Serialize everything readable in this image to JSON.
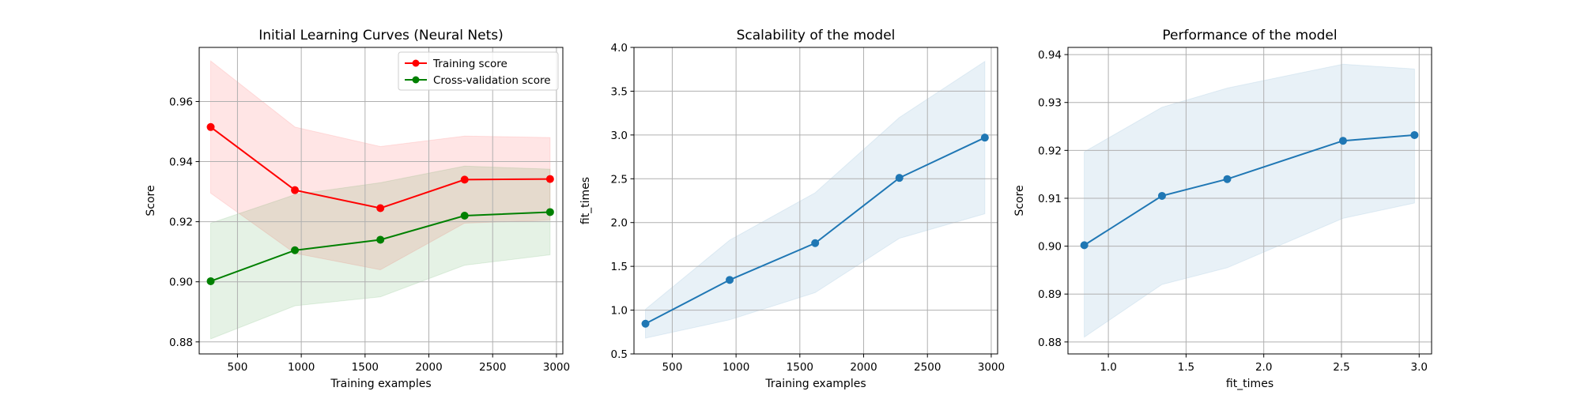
{
  "chart_data": [
    {
      "type": "line",
      "title": "Initial Learning Curves (Neural Nets)",
      "xlabel": "Training examples",
      "ylabel": "Score",
      "xlim": [
        200,
        3050
      ],
      "ylim": [
        0.876,
        0.978
      ],
      "xticks": [
        500,
        1000,
        1500,
        2000,
        2500,
        3000
      ],
      "xtick_labels": [
        "500",
        "1000",
        "1500",
        "2000",
        "2500",
        "3000"
      ],
      "yticks": [
        0.88,
        0.9,
        0.92,
        0.94,
        0.96
      ],
      "ytick_labels": [
        "0.88",
        "0.90",
        "0.92",
        "0.94",
        "0.96"
      ],
      "grid": true,
      "legend": "upper right",
      "x": [
        290,
        950,
        1620,
        2280,
        2950
      ],
      "series": [
        {
          "name": "Training score",
          "color": "#ff0000",
          "band_color": "#ff0000",
          "values": [
            0.9515,
            0.9305,
            0.9245,
            0.934,
            0.9342
          ],
          "lower": [
            0.9295,
            0.9095,
            0.904,
            0.9195,
            0.9205
          ],
          "upper": [
            0.9735,
            0.9515,
            0.945,
            0.9485,
            0.948
          ]
        },
        {
          "name": "Cross-validation score",
          "color": "#008000",
          "band_color": "#008000",
          "values": [
            0.9002,
            0.9105,
            0.914,
            0.922,
            0.9232
          ],
          "lower": [
            0.881,
            0.892,
            0.895,
            0.9055,
            0.909
          ],
          "upper": [
            0.9195,
            0.929,
            0.933,
            0.9385,
            0.9375
          ]
        }
      ]
    },
    {
      "type": "line",
      "title": "Scalability of the model",
      "xlabel": "Training examples",
      "ylabel": "fit_times",
      "xlim": [
        200,
        3050
      ],
      "ylim": [
        0.5,
        4.0
      ],
      "xticks": [
        500,
        1000,
        1500,
        2000,
        2500,
        3000
      ],
      "xtick_labels": [
        "500",
        "1000",
        "1500",
        "2000",
        "2500",
        "3000"
      ],
      "yticks": [
        0.5,
        1.0,
        1.5,
        2.0,
        2.5,
        3.0,
        3.5,
        4.0
      ],
      "ytick_labels": [
        "0.5",
        "1.0",
        "1.5",
        "2.0",
        "2.5",
        "3.0",
        "3.5",
        "4.0"
      ],
      "grid": true,
      "x": [
        290,
        950,
        1620,
        2280,
        2950
      ],
      "series": [
        {
          "color": "#1f77b4",
          "band_color": "#1f77b4",
          "values": [
            0.845,
            1.345,
            1.765,
            2.51,
            2.97
          ],
          "lower": [
            0.68,
            0.89,
            1.2,
            1.82,
            2.1
          ],
          "upper": [
            1.01,
            1.8,
            2.34,
            3.2,
            3.84
          ]
        }
      ]
    },
    {
      "type": "line",
      "title": "Performance of the model",
      "xlabel": "fit_times",
      "ylabel": "Score",
      "xlim": [
        0.74,
        3.08
      ],
      "ylim": [
        0.8775,
        0.9415
      ],
      "xticks": [
        1.0,
        1.5,
        2.0,
        2.5,
        3.0
      ],
      "xtick_labels": [
        "1.0",
        "1.5",
        "2.0",
        "2.5",
        "3.0"
      ],
      "yticks": [
        0.88,
        0.89,
        0.9,
        0.91,
        0.92,
        0.93,
        0.94
      ],
      "ytick_labels": [
        "0.88",
        "0.89",
        "0.90",
        "0.91",
        "0.92",
        "0.93",
        "0.94"
      ],
      "grid": true,
      "x": [
        0.845,
        1.345,
        1.765,
        2.51,
        2.97
      ],
      "series": [
        {
          "color": "#1f77b4",
          "band_color": "#1f77b4",
          "values": [
            0.9002,
            0.9105,
            0.914,
            0.922,
            0.9232
          ],
          "lower": [
            0.881,
            0.892,
            0.8955,
            0.9058,
            0.909
          ],
          "upper": [
            0.9197,
            0.929,
            0.933,
            0.938,
            0.937
          ]
        }
      ]
    }
  ]
}
